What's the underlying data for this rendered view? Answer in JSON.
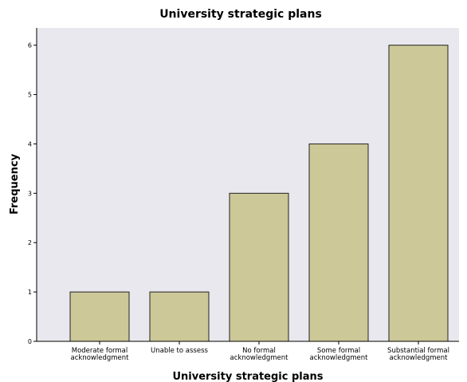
{
  "chart_data": {
    "type": "bar",
    "title": "University strategic plans",
    "xlabel": "University strategic plans",
    "ylabel": "Frequency",
    "categories": [
      [
        "Moderate formal",
        "acknowledgment"
      ],
      [
        "Unable to assess"
      ],
      [
        "No formal",
        "acknowledgment"
      ],
      [
        "Some formal",
        "acknowledgment"
      ],
      [
        "Substantial formal",
        "acknowledgment"
      ]
    ],
    "values": [
      1,
      1,
      3,
      4,
      6
    ],
    "ylim": [
      0,
      6.35
    ],
    "yticks": [
      0,
      1,
      2,
      3,
      4,
      5,
      6
    ],
    "grid": false,
    "colors": {
      "plot_background": "#e8e8ee",
      "bar_fill": "#ccc898",
      "bar_stroke": "#222222",
      "axis": "#000000"
    }
  }
}
